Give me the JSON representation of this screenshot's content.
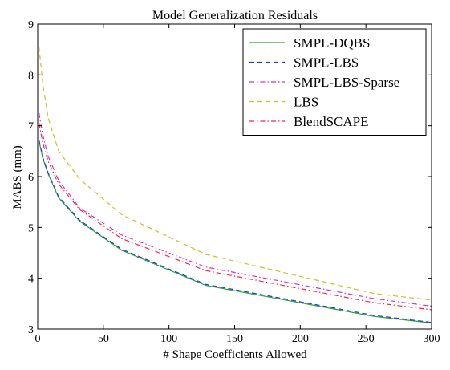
{
  "chart_data": {
    "type": "line",
    "title": "Model Generalization Residuals",
    "xlabel": "# Shape Coefficients Allowed",
    "ylabel": "MABS (mm)",
    "xlim": [
      0,
      300
    ],
    "ylim": [
      3,
      9
    ],
    "xticks": [
      0,
      50,
      100,
      150,
      200,
      250,
      300
    ],
    "yticks": [
      3,
      4,
      5,
      6,
      7,
      8,
      9
    ],
    "grid": false,
    "legend_position": "top-right",
    "series": [
      {
        "name": "SMPL-DQBS",
        "color": "#2ca02c",
        "dash": "solid",
        "x": [
          1,
          4,
          8,
          16,
          32,
          64,
          128,
          256,
          300
        ],
        "y": [
          6.7,
          6.35,
          6.05,
          5.58,
          5.12,
          4.55,
          3.86,
          3.25,
          3.12
        ]
      },
      {
        "name": "SMPL-LBS",
        "color": "#1f3fd6",
        "dash": "dash",
        "x": [
          1,
          4,
          8,
          16,
          32,
          64,
          128,
          256,
          300
        ],
        "y": [
          6.72,
          6.37,
          6.07,
          5.6,
          5.14,
          4.57,
          3.88,
          3.27,
          3.13
        ]
      },
      {
        "name": "SMPL-LBS-Sparse",
        "color": "#cc33cc",
        "dash": "dashdot",
        "x": [
          1,
          4,
          8,
          16,
          32,
          64,
          128,
          256,
          300
        ],
        "y": [
          7.25,
          6.8,
          6.4,
          5.92,
          5.38,
          4.85,
          4.22,
          3.6,
          3.45
        ]
      },
      {
        "name": "LBS",
        "color": "#c9c22a",
        "dash": "dash",
        "x": [
          1,
          4,
          8,
          16,
          32,
          64,
          128,
          256,
          300
        ],
        "y": [
          8.55,
          7.8,
          7.15,
          6.5,
          5.95,
          5.25,
          4.47,
          3.7,
          3.57
        ]
      },
      {
        "name": "BlendSCAPE",
        "color": "#ff2244",
        "dash": "dashdot",
        "x": [
          1,
          4,
          8,
          16,
          32,
          64,
          128,
          256,
          300
        ],
        "y": [
          7.05,
          6.65,
          6.3,
          5.85,
          5.35,
          4.78,
          4.15,
          3.52,
          3.38
        ]
      }
    ]
  }
}
